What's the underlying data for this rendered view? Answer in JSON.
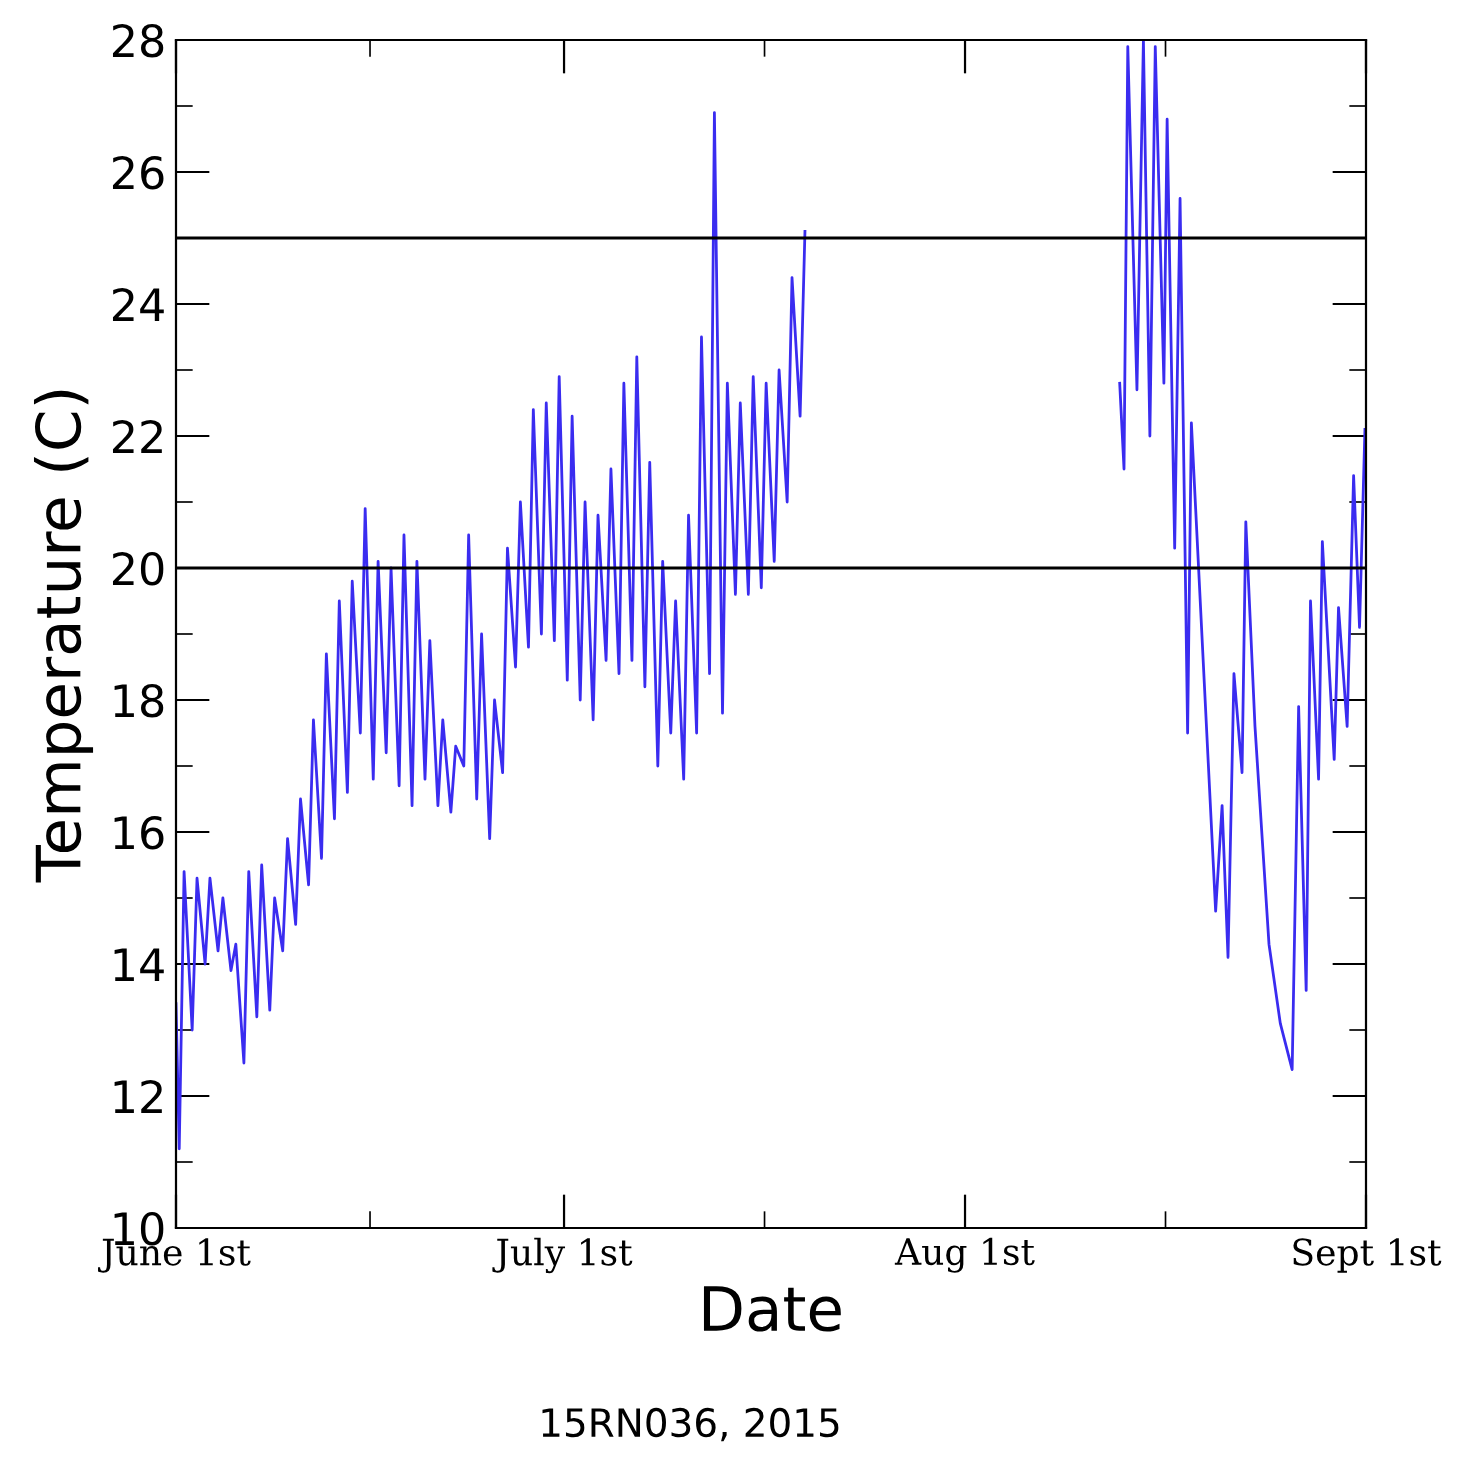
{
  "chart_data": {
    "type": "line",
    "xlabel": "Date",
    "ylabel": "Temperature (C)",
    "annotations": [
      "15RN036, 2015"
    ],
    "xlim": [
      "2015-06-01",
      "2015-09-01"
    ],
    "xticks": [
      {
        "value": "2015-06-01",
        "label": "June 1st"
      },
      {
        "value": "2015-07-01",
        "label": "July 1st"
      },
      {
        "value": "2015-08-01",
        "label": "Aug 1st"
      },
      {
        "value": "2015-09-01",
        "label": "Sept 1st"
      }
    ],
    "ylim": [
      10,
      28
    ],
    "yticks": [
      10,
      12,
      14,
      16,
      18,
      20,
      22,
      24,
      26,
      28
    ],
    "grid": false,
    "marker": "none",
    "line_style": "solid",
    "ref_lines": [
      {
        "axis": "y",
        "value": 20,
        "label": null,
        "color": "#000000"
      },
      {
        "axis": "y",
        "value": 25,
        "label": null,
        "color": "#000000"
      }
    ],
    "series": [
      {
        "color": "#3a2cf0",
        "x": [
          "2015-06-01T00:00",
          "2015-06-01T06:00",
          "2015-06-01T15:00",
          "2015-06-02T06:00",
          "2015-06-02T15:00",
          "2015-06-03T06:00",
          "2015-06-03T15:00",
          "2015-06-04T06:00",
          "2015-06-04T15:00",
          "2015-06-05T06:00",
          "2015-06-05T15:00",
          "2015-06-06T06:00",
          "2015-06-06T15:00",
          "2015-06-07T06:00",
          "2015-06-07T15:00",
          "2015-06-08T06:00",
          "2015-06-08T15:00",
          "2015-06-09T06:00",
          "2015-06-09T15:00",
          "2015-06-10T06:00",
          "2015-06-10T15:00",
          "2015-06-11T06:00",
          "2015-06-11T15:00",
          "2015-06-12T06:00",
          "2015-06-12T15:00",
          "2015-06-13T06:00",
          "2015-06-13T15:00",
          "2015-06-14T06:00",
          "2015-06-14T15:00",
          "2015-06-15T06:00",
          "2015-06-15T15:00",
          "2015-06-16T06:00",
          "2015-06-16T15:00",
          "2015-06-17T06:00",
          "2015-06-17T15:00",
          "2015-06-18T06:00",
          "2015-06-18T15:00",
          "2015-06-19T06:00",
          "2015-06-19T15:00",
          "2015-06-20T06:00",
          "2015-06-20T15:00",
          "2015-06-21T06:00",
          "2015-06-21T15:00",
          "2015-06-22T06:00",
          "2015-06-22T15:00",
          "2015-06-23T06:00",
          "2015-06-23T15:00",
          "2015-06-24T06:00",
          "2015-06-24T15:00",
          "2015-06-25T06:00",
          "2015-06-25T15:00",
          "2015-06-26T06:00",
          "2015-06-26T15:00",
          "2015-06-27T06:00",
          "2015-06-27T15:00",
          "2015-06-28T06:00",
          "2015-06-28T15:00",
          "2015-06-29T06:00",
          "2015-06-29T15:00",
          "2015-06-30T06:00",
          "2015-06-30T15:00",
          "2015-07-01T06:00",
          "2015-07-01T15:00",
          "2015-07-02T06:00",
          "2015-07-02T15:00",
          "2015-07-03T06:00",
          "2015-07-03T15:00",
          "2015-07-04T06:00",
          "2015-07-04T15:00",
          "2015-07-05T06:00",
          "2015-07-05T15:00",
          "2015-07-06T06:00",
          "2015-07-06T15:00",
          "2015-07-07T06:00",
          "2015-07-07T15:00",
          "2015-07-08T06:00",
          "2015-07-08T15:00",
          "2015-07-09T06:00",
          "2015-07-09T15:00",
          "2015-07-10T06:00",
          "2015-07-10T15:00",
          "2015-07-11T06:00",
          "2015-07-11T15:00",
          "2015-07-12T06:00",
          "2015-07-12T15:00",
          "2015-07-13T06:00",
          "2015-07-13T15:00",
          "2015-07-14T06:00",
          "2015-07-14T15:00",
          "2015-07-15T06:00",
          "2015-07-15T15:00",
          "2015-07-16T06:00",
          "2015-07-16T15:00",
          "2015-07-17T06:00",
          "2015-07-17T15:00",
          "2015-07-18T06:00",
          "2015-07-18T15:00",
          "2015-07-19T06:00",
          "2015-07-19T15:00",
          "2015-08-01T00:00",
          "2015-08-12T23:00",
          "2015-08-13T07:00",
          "2015-08-13T14:00",
          "2015-08-14T07:00",
          "2015-08-14T19:00",
          "2015-08-15T07:00",
          "2015-08-15T17:00",
          "2015-08-16T09:00",
          "2015-08-16T15:00",
          "2015-08-17T05:00",
          "2015-08-17T15:00",
          "2015-08-18T05:00",
          "2015-08-18T12:00",
          "2015-08-20T09:00",
          "2015-08-20T21:00",
          "2015-08-21T08:00",
          "2015-08-21T19:00",
          "2015-08-22T10:00",
          "2015-08-22T17:00",
          "2015-08-23T10:00",
          "2015-08-24T12:00",
          "2015-08-25T09:00",
          "2015-08-26T07:00",
          "2015-08-26T19:00",
          "2015-08-27T09:00",
          "2015-08-27T17:00",
          "2015-08-28T08:00",
          "2015-08-28T15:00",
          "2015-08-29T13:00",
          "2015-08-29T21:00",
          "2015-08-30T13:00",
          "2015-08-31T01:00",
          "2015-08-31T12:00",
          "2015-08-31T22:00"
        ],
        "values": [
          13.4,
          11.2,
          15.4,
          13.0,
          15.3,
          14.0,
          15.3,
          14.2,
          15.0,
          13.9,
          14.3,
          12.5,
          15.4,
          13.2,
          15.5,
          13.3,
          15.0,
          14.2,
          15.9,
          14.6,
          16.5,
          15.2,
          17.7,
          15.6,
          18.7,
          16.2,
          19.5,
          16.6,
          19.8,
          17.5,
          20.9,
          16.8,
          20.1,
          17.2,
          20.0,
          16.7,
          20.5,
          16.4,
          20.1,
          16.8,
          18.9,
          16.4,
          17.7,
          16.3,
          17.3,
          17.0,
          20.5,
          16.5,
          19.0,
          15.9,
          18.0,
          16.9,
          20.3,
          18.5,
          21.0,
          18.8,
          22.4,
          19.0,
          22.5,
          18.9,
          22.9,
          18.3,
          22.3,
          18.0,
          21.0,
          17.7,
          20.8,
          18.6,
          21.5,
          18.4,
          22.8,
          18.6,
          23.2,
          18.2,
          21.6,
          17.0,
          20.1,
          17.5,
          19.5,
          16.8,
          20.8,
          17.5,
          23.5,
          18.4,
          26.9,
          17.8,
          22.8,
          19.6,
          22.5,
          19.6,
          22.9,
          19.7,
          22.8,
          20.1,
          23.0,
          21.0,
          24.4,
          22.3,
          25.1,
          null,
          22.8,
          21.5,
          27.9,
          22.7,
          28.0,
          22.0,
          27.9,
          22.8,
          26.8,
          20.3,
          25.6,
          17.5,
          22.2,
          14.8,
          16.4,
          14.1,
          18.4,
          16.9,
          20.7,
          17.6,
          14.3,
          13.1,
          12.4,
          17.9,
          13.6,
          19.5,
          16.8,
          20.4,
          17.1,
          19.4,
          17.6,
          21.4,
          19.1,
          22.1
        ]
      }
    ]
  }
}
